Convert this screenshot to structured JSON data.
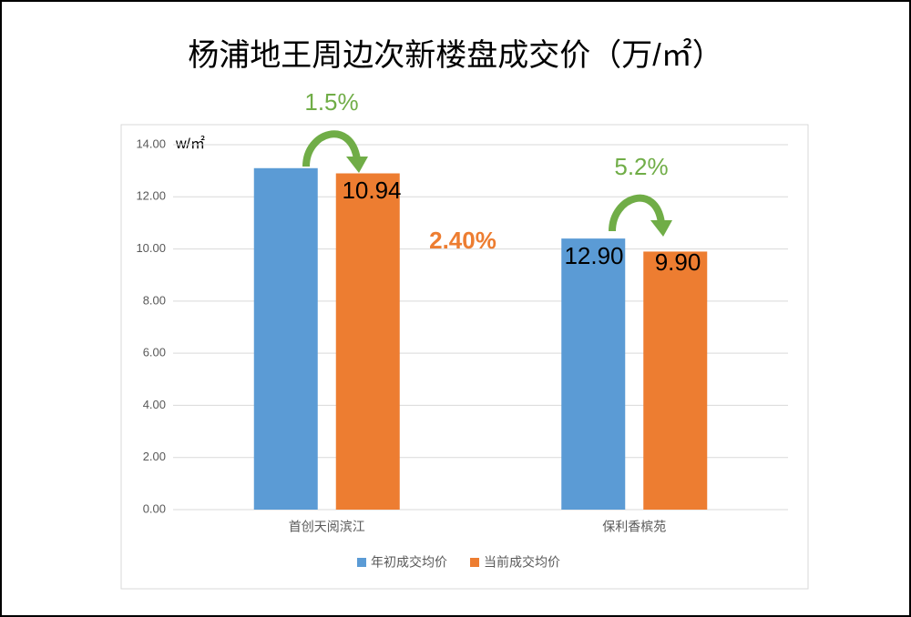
{
  "chart_data": {
    "type": "bar",
    "title": "杨浦地王周边次新楼盘成交价（万/㎡）",
    "y_unit_label": "w/㎡",
    "categories": [
      "首创天阅滨江",
      "保利香槟苑"
    ],
    "series": [
      {
        "name": "年初成交均价",
        "color": "#5b9bd5",
        "values": [
          13.1,
          10.4
        ]
      },
      {
        "name": "当前成交均价",
        "color": "#ed7d31",
        "values": [
          12.9,
          9.9
        ]
      }
    ],
    "ylim": [
      0,
      14
    ],
    "yticks": [
      {
        "value": 0,
        "label": "0.00"
      },
      {
        "value": 2,
        "label": "2.00"
      },
      {
        "value": 4,
        "label": "4.00"
      },
      {
        "value": 6,
        "label": "6.00"
      },
      {
        "value": 8,
        "label": "8.00"
      },
      {
        "value": 10,
        "label": "10.00"
      },
      {
        "value": 12,
        "label": "12.00"
      },
      {
        "value": 14,
        "label": "14.00"
      }
    ],
    "grid": true,
    "legend": "bottom",
    "annotations": [
      {
        "text": "1.5%",
        "color": "#70ad47"
      },
      {
        "text": "10.94",
        "color": "#000000"
      },
      {
        "text": "2.40%",
        "color": "#ed7d31"
      },
      {
        "text": "5.2%",
        "color": "#70ad47"
      },
      {
        "text": "12.90",
        "color": "#000000"
      },
      {
        "text": "9.90",
        "color": "#000000"
      }
    ]
  }
}
